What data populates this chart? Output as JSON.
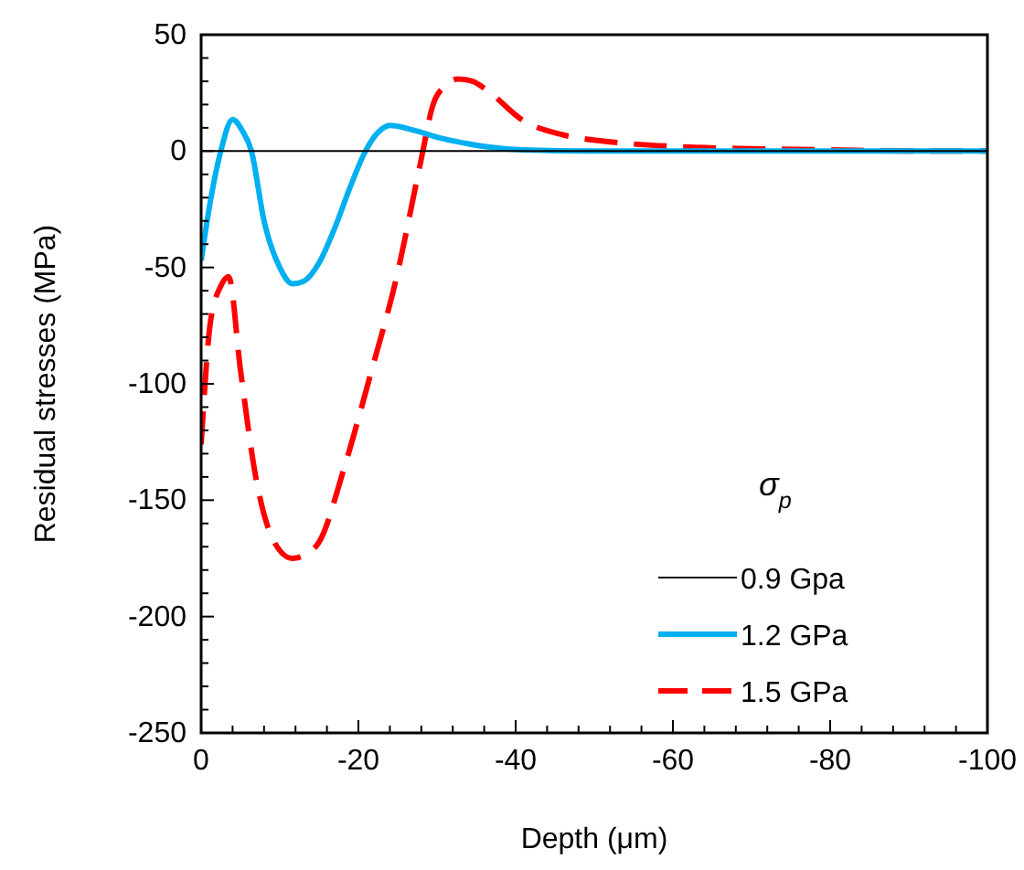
{
  "chart_data": {
    "type": "line",
    "xlabel": "Depth (μm)",
    "ylabel": "Residual stresses (MPa)",
    "legend_title": "σ$_{p}$",
    "legend": "bottom right",
    "grid": false,
    "marker": "none",
    "xlim": [
      0,
      -100
    ],
    "ylim": [
      -250,
      50
    ],
    "xticks": [
      0,
      {
        "value": -4,
        "label": null
      },
      {
        "value": -8,
        "label": null
      },
      {
        "value": -12,
        "label": null
      },
      {
        "value": -16,
        "label": null
      },
      -20,
      {
        "value": -24,
        "label": null
      },
      {
        "value": -28,
        "label": null
      },
      {
        "value": -32,
        "label": null
      },
      {
        "value": -36,
        "label": null
      },
      -40,
      {
        "value": -44,
        "label": null
      },
      {
        "value": -48,
        "label": null
      },
      {
        "value": -52,
        "label": null
      },
      {
        "value": -56,
        "label": null
      },
      -60,
      {
        "value": -64,
        "label": null
      },
      {
        "value": -68,
        "label": null
      },
      {
        "value": -72,
        "label": null
      },
      {
        "value": -76,
        "label": null
      },
      -80,
      {
        "value": -84,
        "label": null
      },
      {
        "value": -88,
        "label": null
      },
      {
        "value": -92,
        "label": null
      },
      {
        "value": -96,
        "label": null
      },
      -100
    ],
    "yticks": [
      -250,
      {
        "value": -240,
        "label": null
      },
      {
        "value": -230,
        "label": null
      },
      {
        "value": -220,
        "label": null
      },
      {
        "value": -210,
        "label": null
      },
      -200,
      {
        "value": -190,
        "label": null
      },
      {
        "value": -180,
        "label": null
      },
      {
        "value": -170,
        "label": null
      },
      {
        "value": -160,
        "label": null
      },
      -150,
      {
        "value": -140,
        "label": null
      },
      {
        "value": -130,
        "label": null
      },
      {
        "value": -120,
        "label": null
      },
      {
        "value": -110,
        "label": null
      },
      -100,
      {
        "value": -90,
        "label": null
      },
      {
        "value": -80,
        "label": null
      },
      {
        "value": -70,
        "label": null
      },
      {
        "value": -60,
        "label": null
      },
      -50,
      {
        "value": -40,
        "label": null
      },
      {
        "value": -30,
        "label": null
      },
      {
        "value": -20,
        "label": null
      },
      {
        "value": -10,
        "label": null
      },
      0,
      {
        "value": 10,
        "label": null
      },
      {
        "value": 20,
        "label": null
      },
      {
        "value": 30,
        "label": null
      },
      {
        "value": 40,
        "label": null
      },
      50
    ],
    "series": [
      {
        "name": "0.9 Gpa",
        "color": "#000000",
        "line_style": "solid",
        "x": [
          0,
          -100
        ],
        "values": [
          0,
          0
        ]
      },
      {
        "name": "1.2 GPa",
        "color": "#00b0f0",
        "line_style": "solid",
        "x": [
          0,
          -1,
          -2.5,
          -4,
          -5.2,
          -6.4,
          -8,
          -10,
          -11.6,
          -13,
          -15,
          -17,
          -19,
          -20.9,
          -22.5,
          -24,
          -27,
          -30,
          -32.6,
          -36,
          -41,
          -50,
          -60,
          -80,
          -100
        ],
        "values": [
          -47,
          -25,
          0,
          13.6,
          9,
          0,
          -30,
          -50,
          -57,
          -56,
          -48,
          -33,
          -15,
          0,
          8,
          11,
          9,
          6,
          4,
          2,
          0.5,
          0,
          0,
          0,
          0
        ]
      },
      {
        "name": "1.5 GPa",
        "color": "#ff0000",
        "line_style": "dashed",
        "x": [
          0,
          -1.2,
          -2.5,
          -3.5,
          -5,
          -7,
          -9.3,
          -11.6,
          -13.5,
          -15,
          -18.2,
          -21.7,
          -24.8,
          -27.9,
          -29.5,
          -31,
          -32.6,
          -34.5,
          -36.4,
          -41,
          -46,
          -52,
          -60,
          -70,
          -80,
          -90,
          -100
        ],
        "values": [
          -126,
          -73,
          -58,
          -54,
          -94,
          -141,
          -168,
          -175,
          -173,
          -168,
          -136,
          -94,
          -55,
          -5,
          20,
          28,
          31,
          30,
          26,
          13,
          7,
          4,
          2,
          1,
          0.5,
          0,
          0
        ]
      }
    ]
  }
}
